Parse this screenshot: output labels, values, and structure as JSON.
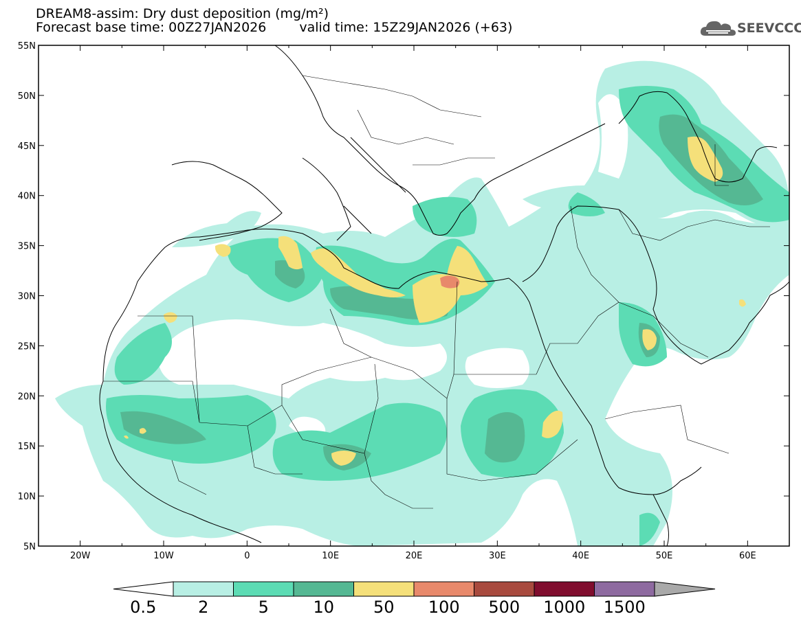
{
  "header": {
    "line1": "DREAM8-assim: Dry dust deposition (mg/m²)",
    "base_time": "Forecast base time: 00Z27JAN2026",
    "valid_time": "valid time: 15Z29JAN2026 (+63)"
  },
  "logo": {
    "text": "SEEVCCC",
    "icon": "cloud-logo-icon"
  },
  "map": {
    "lat_range": [
      5,
      55
    ],
    "lon_range": [
      -25,
      65
    ],
    "lat_labels": [
      "55N",
      "50N",
      "45N",
      "40N",
      "35N",
      "30N",
      "25N",
      "20N",
      "15N",
      "10N",
      "5N"
    ],
    "lon_labels": [
      "20W",
      "10W",
      "0",
      "10E",
      "20E",
      "30E",
      "40E",
      "50E",
      "60E"
    ],
    "colors": {
      "c1": "#b8efe4",
      "c2": "#5cdcb4",
      "c3": "#55b893",
      "c4": "#f5e07a",
      "c5": "#e8896b",
      "c6": "#a84a3e",
      "c7": "#800d2e",
      "c8": "#8e6aa0",
      "c9": "#a9a9a9"
    }
  },
  "colorbar": {
    "labels": [
      "0.5",
      "2",
      "5",
      "10",
      "50",
      "100",
      "500",
      "1000",
      "1500"
    ],
    "colors": [
      "#b8efe4",
      "#5cdcb4",
      "#55b893",
      "#f5e07a",
      "#e8896b",
      "#a84a3e",
      "#800d2e",
      "#8e6aa0"
    ],
    "over_color": "#a9a9a9",
    "under_color": "#ffffff"
  }
}
